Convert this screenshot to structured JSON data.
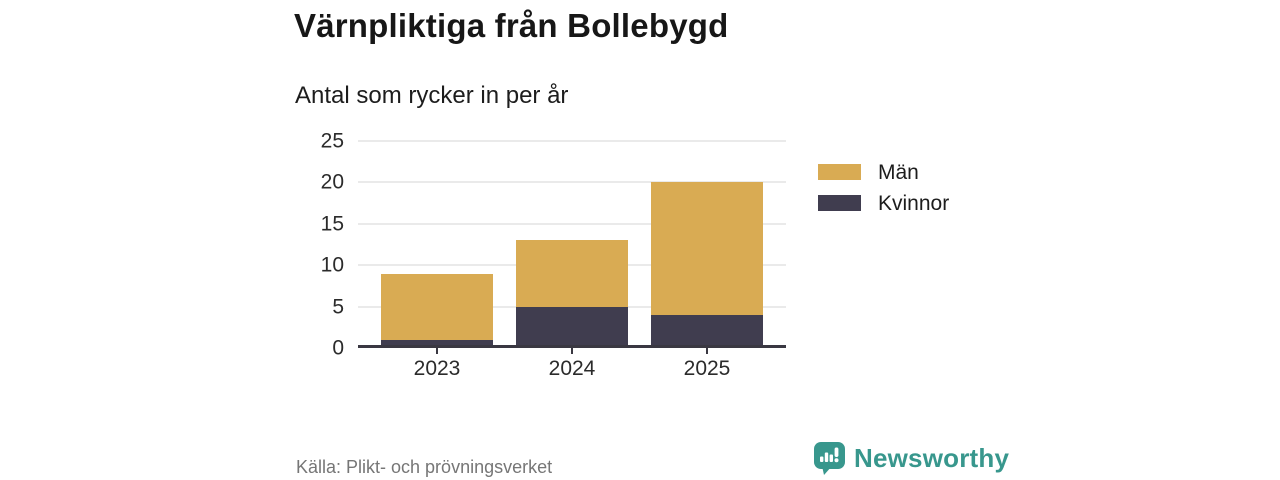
{
  "header": {
    "title": "Värnpliktiga från Bollebygd",
    "subtitle": "Antal som rycker in per år"
  },
  "chart_data": {
    "type": "bar",
    "stacked": true,
    "title": "Värnpliktiga från Bollebygd",
    "subtitle": "Antal som rycker in per år",
    "categories": [
      "2023",
      "2024",
      "2025"
    ],
    "series": [
      {
        "name": "Män",
        "values": [
          8,
          8,
          16
        ],
        "color": "#D9AB53"
      },
      {
        "name": "Kvinnor",
        "values": [
          1,
          5,
          4
        ],
        "color": "#403D4F"
      }
    ],
    "stack_order_bottom_to_top": [
      "Kvinnor",
      "Män"
    ],
    "totals": [
      9,
      13,
      20
    ],
    "xlabel": "",
    "ylabel": "",
    "ylim": [
      0,
      25
    ],
    "yticks": [
      0,
      5,
      10,
      15,
      20,
      25
    ],
    "grid": true,
    "legend_position": "right"
  },
  "footer": {
    "source": "Källa: Plikt- och prövningsverket",
    "brand_name": "Newsworthy"
  },
  "colors": {
    "men": "#D9AB53",
    "women": "#403D4F",
    "axis": "#3A3842",
    "grid": "#EAEAEA",
    "brand_teal": "#38978D",
    "source_text": "#767676"
  }
}
